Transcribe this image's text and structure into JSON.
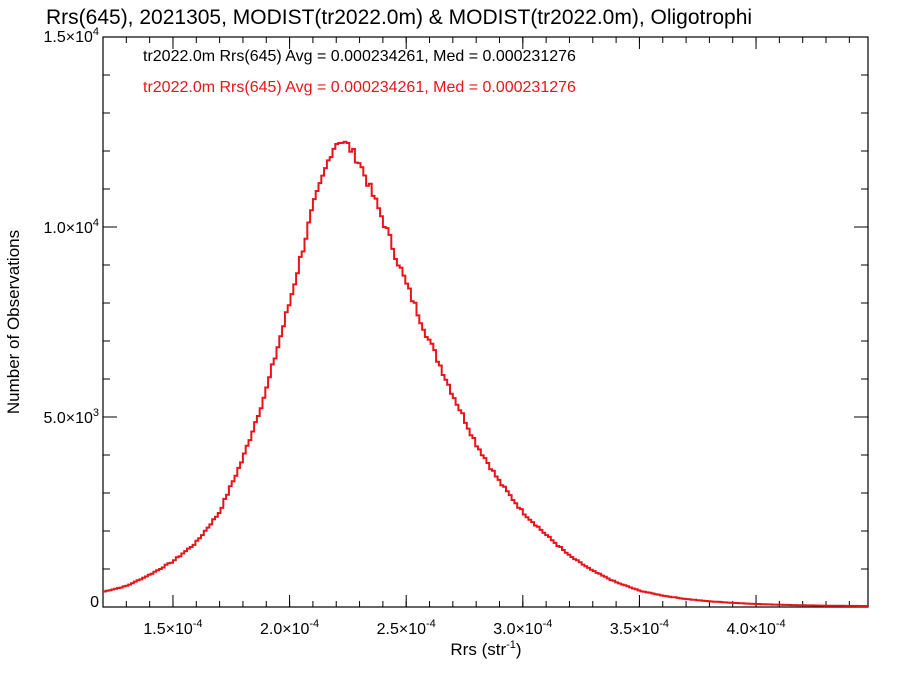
{
  "chart_data": {
    "type": "histogram",
    "title": "Rrs(645), 2021305, MODIST(tr2022.0m) & MODIST(tr2022.0m), Oligotrophi",
    "xlabel": "Rrs (str",
    "xlabel_sup": "-1",
    "xlabel_suffix": ")",
    "ylabel": "Number of Observations",
    "xlim": [
      0.00012,
      0.000448
    ],
    "ylim": [
      0,
      15000
    ],
    "grid": false,
    "x_ticks": [
      {
        "value": 0.00015,
        "mantissa": "1.5×10",
        "exp": "-4"
      },
      {
        "value": 0.0002,
        "mantissa": "2.0×10",
        "exp": "-4"
      },
      {
        "value": 0.00025,
        "mantissa": "2.5×10",
        "exp": "-4"
      },
      {
        "value": 0.0003,
        "mantissa": "3.0×10",
        "exp": "-4"
      },
      {
        "value": 0.00035,
        "mantissa": "3.5×10",
        "exp": "-4"
      },
      {
        "value": 0.0004,
        "mantissa": "4.0×10",
        "exp": "-4"
      }
    ],
    "y_ticks": [
      {
        "value": 0,
        "mantissa": "0",
        "exp": ""
      },
      {
        "value": 5000,
        "mantissa": "5.0×10",
        "exp": "3"
      },
      {
        "value": 10000,
        "mantissa": "1.0×10",
        "exp": "4"
      },
      {
        "value": 15000,
        "mantissa": "1.5×10",
        "exp": "4"
      }
    ],
    "annotations": [
      {
        "text": "tr2022.0m Rrs(645) Avg = 0.000234261, Med = 0.000231276",
        "color": "#000000"
      },
      {
        "text": "tr2022.0m Rrs(645) Avg = 0.000234261, Med = 0.000231276",
        "color": "#e8141a"
      }
    ],
    "series": [
      {
        "color": "#e8141a",
        "points": [
          [
            0.00012,
            400
          ],
          [
            0.00013,
            550
          ],
          [
            0.00014,
            850
          ],
          [
            0.00015,
            1200
          ],
          [
            0.00016,
            1700
          ],
          [
            0.00017,
            2500
          ],
          [
            0.00018,
            3900
          ],
          [
            0.00019,
            5700
          ],
          [
            0.0002,
            8000
          ],
          [
            0.00021,
            10500
          ],
          [
            0.000218,
            12000
          ],
          [
            0.000221,
            12300
          ],
          [
            0.000225,
            12150
          ],
          [
            0.00023,
            11700
          ],
          [
            0.00024,
            10200
          ],
          [
            0.00025,
            8500
          ],
          [
            0.00026,
            7000
          ],
          [
            0.00027,
            5600
          ],
          [
            0.00028,
            4300
          ],
          [
            0.00029,
            3300
          ],
          [
            0.0003,
            2500
          ],
          [
            0.00031,
            1900
          ],
          [
            0.00032,
            1350
          ],
          [
            0.00033,
            950
          ],
          [
            0.00034,
            650
          ],
          [
            0.00035,
            430
          ],
          [
            0.00036,
            300
          ],
          [
            0.00037,
            210
          ],
          [
            0.00038,
            150
          ],
          [
            0.00039,
            110
          ],
          [
            0.0004,
            80
          ],
          [
            0.00041,
            60
          ],
          [
            0.00042,
            45
          ],
          [
            0.00043,
            35
          ],
          [
            0.000448,
            25
          ]
        ]
      }
    ]
  }
}
